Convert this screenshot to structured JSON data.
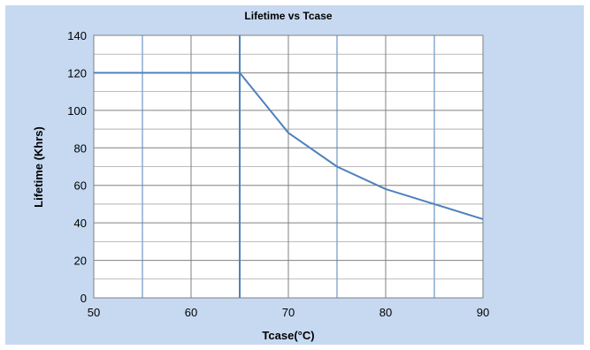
{
  "chart_data": {
    "type": "line",
    "title": "Lifetime vs Tcase",
    "xlabel": "Tcase(°C)",
    "ylabel": "Lifetime (Khrs)",
    "xlim": [
      50,
      90
    ],
    "ylim": [
      0,
      140
    ],
    "x_ticks": [
      50,
      60,
      70,
      80,
      90
    ],
    "y_ticks": [
      0,
      20,
      40,
      60,
      80,
      100,
      120,
      140
    ],
    "grid": true,
    "legend": "none",
    "colors": {
      "line": "#4f81bd",
      "frame_background": "#c6d9f1",
      "plot_background": "#ffffff",
      "major_grid": "#808080",
      "minor_grid": "#4f81bd"
    },
    "series": [
      {
        "x": [
          50,
          65,
          70,
          75,
          80,
          85,
          90
        ],
        "y": [
          120,
          120,
          88,
          70,
          58,
          50,
          42
        ]
      }
    ]
  }
}
